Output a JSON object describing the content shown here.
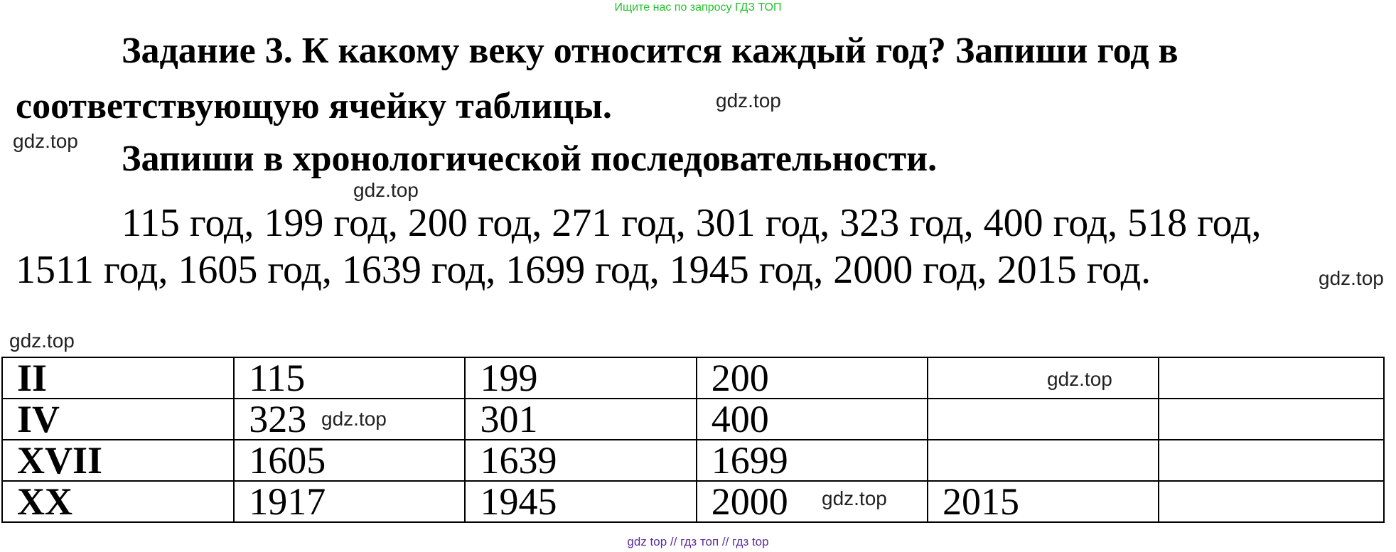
{
  "header_note": "Ищите нас по запросу ГДЗ ТОП",
  "task": {
    "line1": "Задание 3. К какому веку относится каждый год? Запиши год в",
    "line2": "соответствующую ячейку таблицы.",
    "line3": "Запиши в хронологической последовательности."
  },
  "years": {
    "line1": "115 год, 199 год, 200 год, 271 год, 301 год, 323 год, 400 год, 518 год,",
    "line2": "1511 год, 1605 год, 1639 год, 1699 год, 1945 год, 2000 год, 2015 год."
  },
  "table": {
    "rows": [
      {
        "century": "II",
        "cells": [
          "115",
          "199",
          "200",
          "",
          ""
        ]
      },
      {
        "century": "IV",
        "cells": [
          "323",
          "301",
          "400",
          "",
          ""
        ]
      },
      {
        "century": "XVII",
        "cells": [
          "1605",
          "1639",
          "1699",
          "",
          ""
        ]
      },
      {
        "century": "XX",
        "cells": [
          "1917",
          "1945",
          "2000",
          "2015",
          ""
        ]
      }
    ]
  },
  "watermark": "gdz.top",
  "footer": "gdz top  //  гдз топ  //  гдз top"
}
